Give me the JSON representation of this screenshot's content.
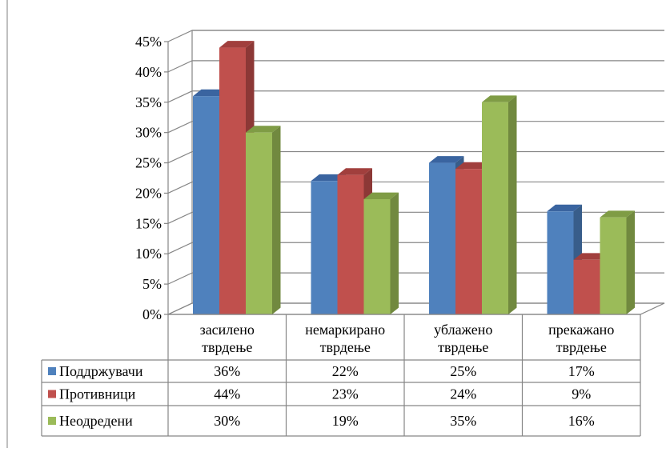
{
  "chart_data": {
    "type": "bar",
    "style": "3d-clustered-column-with-data-table",
    "categories": [
      [
        "засилено",
        "тврдење"
      ],
      [
        "немаркирано",
        "тврдење"
      ],
      [
        "ублажено",
        "тврдење"
      ],
      [
        "прекажано",
        "тврдење"
      ]
    ],
    "series": [
      {
        "name": "Поддржувачи",
        "values": [
          36,
          22,
          25,
          17
        ],
        "labels": [
          "36%",
          "22%",
          "25%",
          "17%"
        ],
        "color": "#4F81BD",
        "side": "#385D8A",
        "top": "#3A64A0"
      },
      {
        "name": "Противници",
        "values": [
          44,
          23,
          24,
          9
        ],
        "labels": [
          "44%",
          "23%",
          "24%",
          "9%"
        ],
        "color": "#C0504D",
        "side": "#8C3836",
        "top": "#A13F3D"
      },
      {
        "name": "Неодредени",
        "values": [
          30,
          19,
          35,
          16
        ],
        "labels": [
          "30%",
          "19%",
          "35%",
          "16%"
        ],
        "color": "#9BBB59",
        "side": "#71893F",
        "top": "#7F9C45"
      }
    ],
    "ylim": [
      0,
      45
    ],
    "yticks": [
      "0%",
      "5%",
      "10%",
      "15%",
      "20%",
      "25%",
      "30%",
      "35%",
      "40%",
      "45%"
    ],
    "grid": true,
    "legend": "data-table-left"
  }
}
